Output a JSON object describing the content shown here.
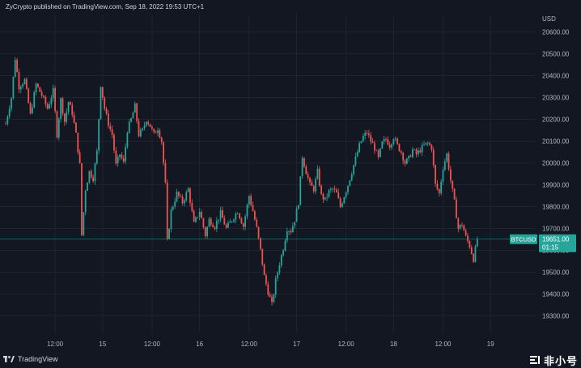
{
  "header": {
    "caption": "ZyCrypto published on TradingView.com, Sep 18, 2022 19:53 UTC+1"
  },
  "footer": {
    "brand": "TradingView",
    "watermark": "非小号"
  },
  "colors": {
    "background": "#131722",
    "grid": "#1f2433",
    "up": "#26a69a",
    "down": "#ef5350",
    "price_line": "#26a69a",
    "axis_text": "#b2b5be"
  },
  "chart_data": {
    "type": "candlestick",
    "title": "",
    "symbol": "BTCUSD",
    "currency": "USD",
    "last_price": "19651.00",
    "countdown": "01:15",
    "grid": true,
    "ylim": [
      19220,
      20680
    ],
    "y_ticks": [
      20600,
      20500,
      20400,
      20300,
      20200,
      20100,
      20000,
      19900,
      19800,
      19700,
      19600,
      19500,
      19400,
      19300
    ],
    "y_tick_labels": [
      "20600.00",
      "20500.00",
      "20400.00",
      "20300.00",
      "20200.00",
      "20100.00",
      "20000.00",
      "19900.00",
      "19800.00",
      "19700.00",
      "19600.00",
      "19500.00",
      "19400.00",
      "19300.00"
    ],
    "x_ticks": [
      {
        "label": "12:00",
        "index": 26
      },
      {
        "label": "15",
        "index": 51
      },
      {
        "label": "12:00",
        "index": 77
      },
      {
        "label": "16",
        "index": 102
      },
      {
        "label": "12:00",
        "index": 128
      },
      {
        "label": "17",
        "index": 153
      },
      {
        "label": "12:00",
        "index": 179
      },
      {
        "label": "18",
        "index": 204
      },
      {
        "label": "12:00",
        "index": 230
      },
      {
        "label": "19",
        "index": 255
      }
    ],
    "close_path": [
      [
        0,
        20180
      ],
      [
        3,
        20300
      ],
      [
        5,
        20480
      ],
      [
        7,
        20350
      ],
      [
        10,
        20380
      ],
      [
        13,
        20220
      ],
      [
        16,
        20360
      ],
      [
        19,
        20310
      ],
      [
        22,
        20250
      ],
      [
        25,
        20330
      ],
      [
        27,
        20130
      ],
      [
        29,
        20290
      ],
      [
        31,
        20190
      ],
      [
        33,
        20280
      ],
      [
        35,
        20230
      ],
      [
        37,
        20130
      ],
      [
        39,
        19990
      ],
      [
        40,
        19670
      ],
      [
        42,
        19880
      ],
      [
        44,
        19960
      ],
      [
        46,
        19930
      ],
      [
        48,
        20050
      ],
      [
        50,
        20360
      ],
      [
        52,
        20250
      ],
      [
        54,
        20180
      ],
      [
        56,
        20130
      ],
      [
        58,
        19990
      ],
      [
        60,
        20040
      ],
      [
        62,
        20000
      ],
      [
        64,
        20150
      ],
      [
        66,
        20200
      ],
      [
        68,
        20260
      ],
      [
        70,
        20130
      ],
      [
        72,
        20150
      ],
      [
        74,
        20200
      ],
      [
        76,
        20170
      ],
      [
        78,
        20130
      ],
      [
        80,
        20160
      ],
      [
        82,
        20100
      ],
      [
        84,
        19900
      ],
      [
        85,
        19640
      ],
      [
        87,
        19780
      ],
      [
        90,
        19860
      ],
      [
        93,
        19820
      ],
      [
        96,
        19880
      ],
      [
        99,
        19720
      ],
      [
        102,
        19780
      ],
      [
        105,
        19670
      ],
      [
        107,
        19740
      ],
      [
        110,
        19710
      ],
      [
        113,
        19770
      ],
      [
        116,
        19700
      ],
      [
        119,
        19740
      ],
      [
        122,
        19780
      ],
      [
        125,
        19710
      ],
      [
        128,
        19850
      ],
      [
        130,
        19780
      ],
      [
        132,
        19700
      ],
      [
        134,
        19600
      ],
      [
        136,
        19480
      ],
      [
        138,
        19410
      ],
      [
        140,
        19350
      ],
      [
        142,
        19460
      ],
      [
        144,
        19540
      ],
      [
        146,
        19610
      ],
      [
        148,
        19700
      ],
      [
        150,
        19690
      ],
      [
        152,
        19740
      ],
      [
        154,
        19820
      ],
      [
        156,
        20030
      ],
      [
        158,
        19960
      ],
      [
        160,
        19900
      ],
      [
        162,
        19880
      ],
      [
        164,
        19960
      ],
      [
        166,
        19850
      ],
      [
        168,
        19830
      ],
      [
        170,
        19870
      ],
      [
        172,
        19880
      ],
      [
        174,
        19860
      ],
      [
        176,
        19800
      ],
      [
        178,
        19850
      ],
      [
        180,
        19900
      ],
      [
        182,
        19960
      ],
      [
        184,
        20020
      ],
      [
        186,
        20080
      ],
      [
        188,
        20120
      ],
      [
        190,
        20140
      ],
      [
        192,
        20100
      ],
      [
        194,
        20070
      ],
      [
        196,
        20020
      ],
      [
        198,
        20090
      ],
      [
        200,
        20110
      ],
      [
        202,
        20080
      ],
      [
        204,
        20120
      ],
      [
        206,
        20080
      ],
      [
        208,
        20050
      ],
      [
        210,
        20000
      ],
      [
        212,
        20020
      ],
      [
        214,
        20060
      ],
      [
        216,
        20040
      ],
      [
        218,
        20060
      ],
      [
        220,
        20080
      ],
      [
        222,
        20090
      ],
      [
        224,
        20070
      ],
      [
        226,
        19900
      ],
      [
        228,
        19860
      ],
      [
        230,
        19980
      ],
      [
        232,
        20040
      ],
      [
        234,
        19920
      ],
      [
        236,
        19820
      ],
      [
        238,
        19700
      ],
      [
        240,
        19720
      ],
      [
        242,
        19660
      ],
      [
        244,
        19620
      ],
      [
        246,
        19560
      ],
      [
        248,
        19651
      ]
    ]
  }
}
